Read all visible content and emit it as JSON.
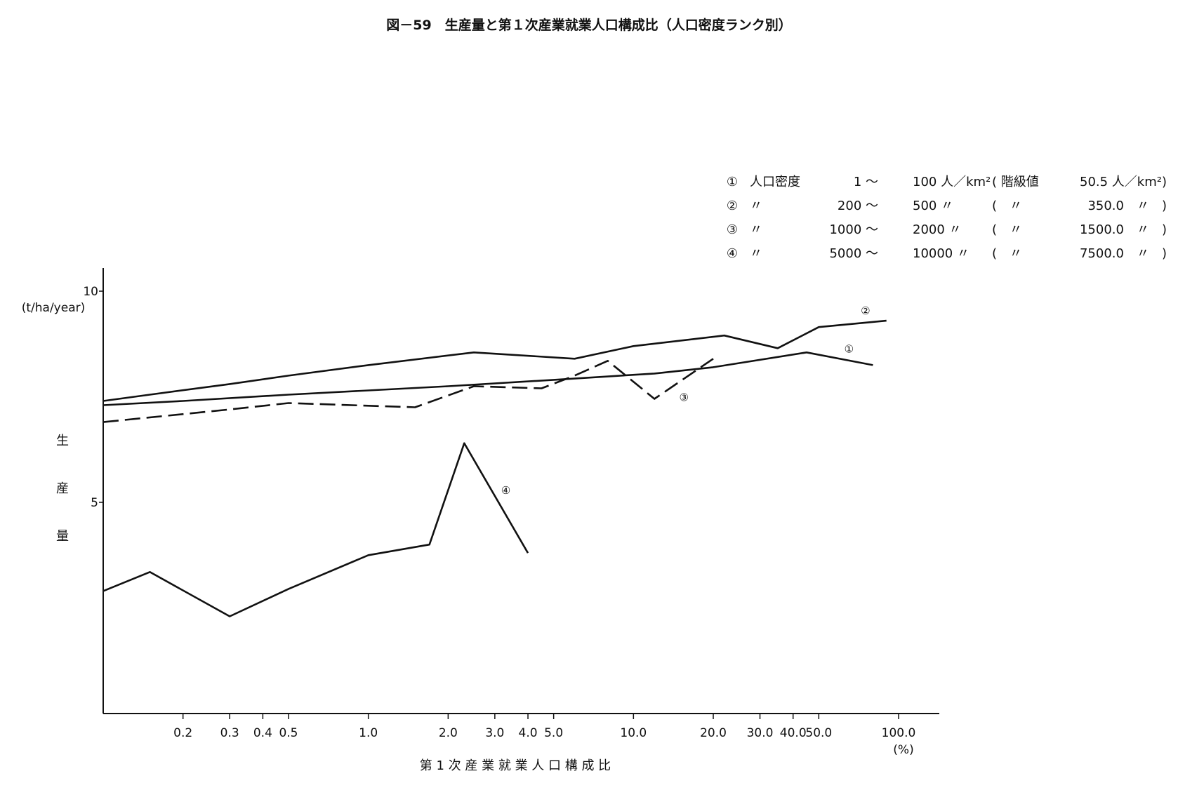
{
  "chart_data": {
    "type": "line",
    "title": "図－59　生産量と第１次産業就業人口構成比（人口密度ランク別）",
    "xlabel": "第 1 次 産 業 就 業 人 口 構 成 比",
    "x_unit": "(%)",
    "ylabel_chars": [
      "生",
      "産",
      "量"
    ],
    "y_unit": "(t/ha/year)",
    "x_scale": "log",
    "xlim": [
      0.1,
      100
    ],
    "ylim": [
      0,
      10.5
    ],
    "x_ticks": [
      {
        "value": 0.2,
        "label": "0.2"
      },
      {
        "value": 0.3,
        "label": "0.3"
      },
      {
        "value": 0.4,
        "label": "0.4"
      },
      {
        "value": 0.5,
        "label": "0.5"
      },
      {
        "value": 1.0,
        "label": "1.0"
      },
      {
        "value": 2.0,
        "label": "2.0"
      },
      {
        "value": 3.0,
        "label": "3.0"
      },
      {
        "value": 4.0,
        "label": "4.0"
      },
      {
        "value": 5.0,
        "label": "5.0"
      },
      {
        "value": 10.0,
        "label": "10.0"
      },
      {
        "value": 20.0,
        "label": "20.0"
      },
      {
        "value": 30.0,
        "label": "30.0"
      },
      {
        "value": 40.0,
        "label": "40.0"
      },
      {
        "value": 50.0,
        "label": "50.0"
      },
      {
        "value": 100.0,
        "label": "100.0"
      }
    ],
    "y_ticks": [
      {
        "value": 5,
        "label": "5"
      },
      {
        "value": 10,
        "label": "10"
      }
    ],
    "grid": false,
    "legend_position": "top-right",
    "legend": [
      {
        "mark": "①",
        "col1": "人口密度",
        "col2": "1 ～",
        "col3": "100 人／km²",
        "col4": "( 階級値",
        "col5": "50.5 人／km²)"
      },
      {
        "mark": "②",
        "col1": "〃",
        "col2": "200 ～",
        "col3": "500 〃",
        "col4": "(　〃",
        "col5": "350.0　〃　)"
      },
      {
        "mark": "③",
        "col1": "〃",
        "col2": "1000 ～",
        "col3": "2000 〃",
        "col4": "(　〃",
        "col5": "1500.0　〃　)"
      },
      {
        "mark": "④",
        "col1": "〃",
        "col2": "5000 ～",
        "col3": "10000 〃",
        "col4": "(　〃",
        "col5": "7500.0　〃　)"
      }
    ],
    "series": [
      {
        "name": "①",
        "dash": "solid",
        "label_at": {
          "x": 65,
          "y": 8.65
        },
        "points": [
          {
            "x": 0.1,
            "y": 7.3
          },
          {
            "x": 0.2,
            "y": 7.4
          },
          {
            "x": 0.5,
            "y": 7.55
          },
          {
            "x": 1.0,
            "y": 7.65
          },
          {
            "x": 2.0,
            "y": 7.75
          },
          {
            "x": 5.0,
            "y": 7.9
          },
          {
            "x": 12.0,
            "y": 8.05
          },
          {
            "x": 20.0,
            "y": 8.2
          },
          {
            "x": 45.0,
            "y": 8.55
          },
          {
            "x": 80.0,
            "y": 8.25
          }
        ]
      },
      {
        "name": "②",
        "dash": "solid",
        "label_at": {
          "x": 75,
          "y": 9.55
        },
        "points": [
          {
            "x": 0.1,
            "y": 7.4
          },
          {
            "x": 0.15,
            "y": 7.55
          },
          {
            "x": 0.3,
            "y": 7.8
          },
          {
            "x": 0.5,
            "y": 8.0
          },
          {
            "x": 1.0,
            "y": 8.25
          },
          {
            "x": 2.5,
            "y": 8.55
          },
          {
            "x": 6.0,
            "y": 8.4
          },
          {
            "x": 10.0,
            "y": 8.7
          },
          {
            "x": 22.0,
            "y": 8.95
          },
          {
            "x": 35.0,
            "y": 8.65
          },
          {
            "x": 50.0,
            "y": 9.15
          },
          {
            "x": 90.0,
            "y": 9.3
          }
        ]
      },
      {
        "name": "③",
        "dash": "dashed",
        "label_at": {
          "x": 15.5,
          "y": 7.5
        },
        "points": [
          {
            "x": 0.1,
            "y": 6.9
          },
          {
            "x": 0.3,
            "y": 7.2
          },
          {
            "x": 0.5,
            "y": 7.35
          },
          {
            "x": 1.5,
            "y": 7.25
          },
          {
            "x": 2.5,
            "y": 7.75
          },
          {
            "x": 4.5,
            "y": 7.7
          },
          {
            "x": 6.0,
            "y": 8.0
          },
          {
            "x": 8.0,
            "y": 8.35
          },
          {
            "x": 12.0,
            "y": 7.45
          },
          {
            "x": 20.0,
            "y": 8.4
          }
        ]
      },
      {
        "name": "④",
        "dash": "solid",
        "label_at": {
          "x": 3.3,
          "y": 5.3
        },
        "points": [
          {
            "x": 0.1,
            "y": 2.9
          },
          {
            "x": 0.15,
            "y": 3.35
          },
          {
            "x": 0.3,
            "y": 2.3
          },
          {
            "x": 0.5,
            "y": 2.95
          },
          {
            "x": 1.0,
            "y": 3.75
          },
          {
            "x": 1.7,
            "y": 4.0
          },
          {
            "x": 2.3,
            "y": 6.4
          },
          {
            "x": 4.0,
            "y": 3.8
          }
        ]
      }
    ]
  }
}
